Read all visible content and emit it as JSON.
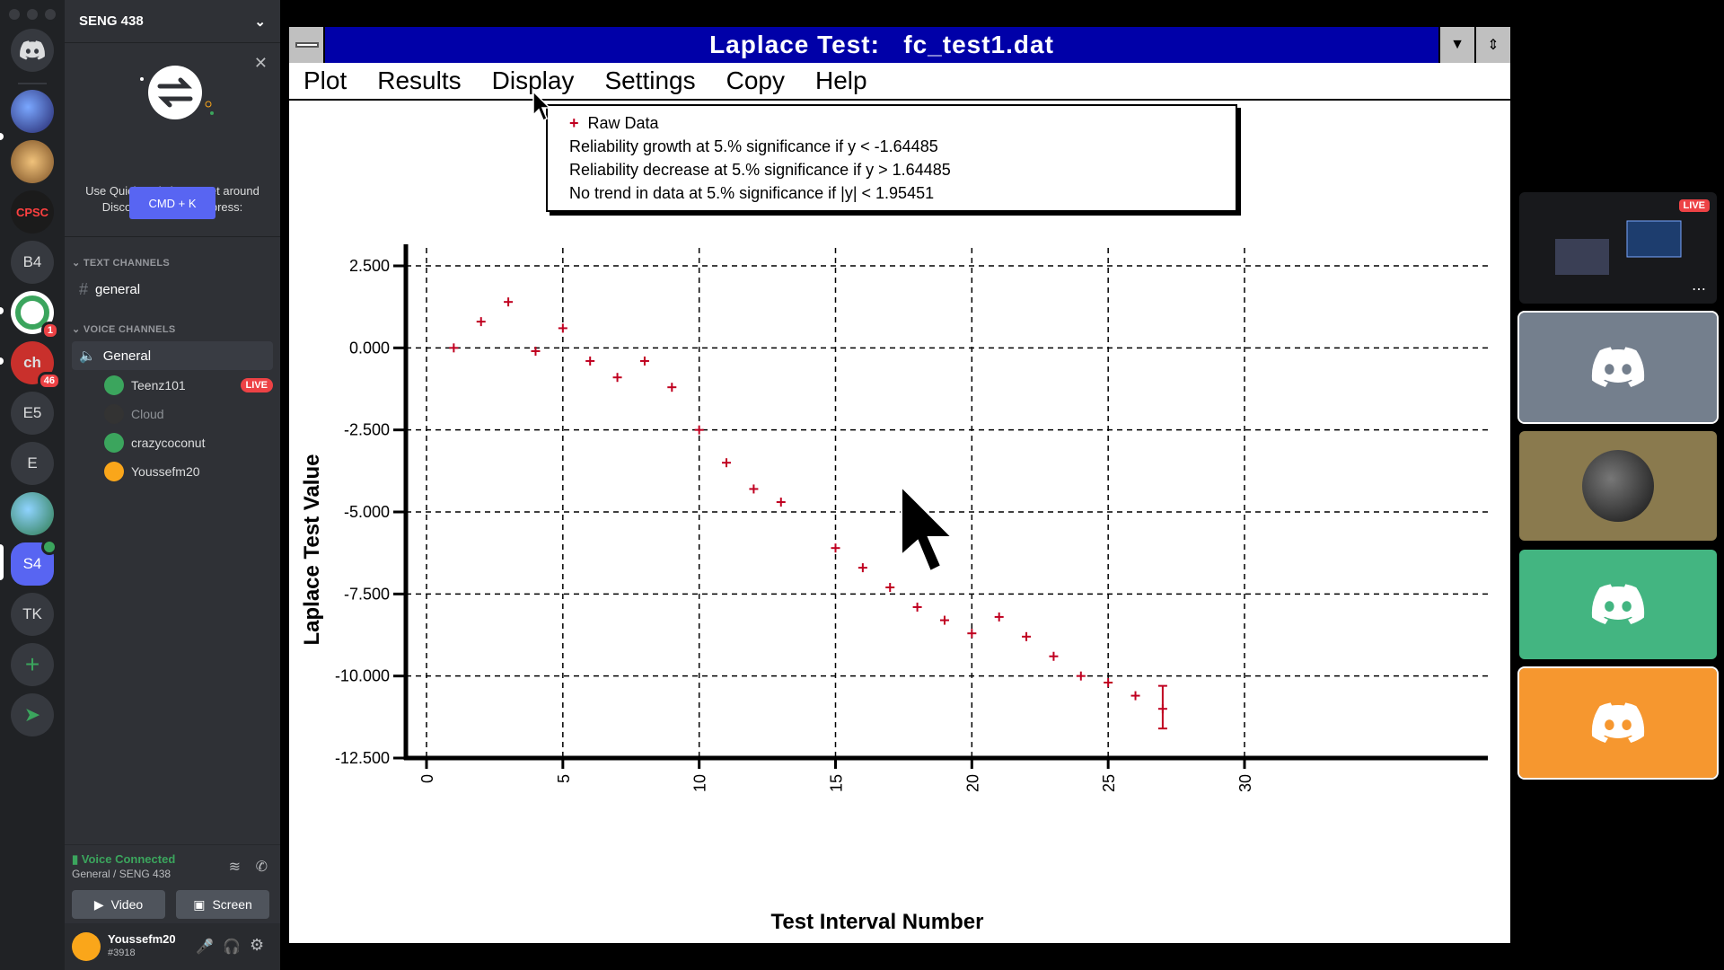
{
  "discord": {
    "server_rail": [
      {
        "name": "home",
        "label": ""
      },
      {
        "name": "server-1",
        "label": ""
      },
      {
        "name": "server-2",
        "label": ""
      },
      {
        "name": "cpsc-441",
        "label": "CPSC"
      },
      {
        "name": "b4",
        "label": "B4"
      },
      {
        "name": "server-ring",
        "label": "",
        "badge": "1"
      },
      {
        "name": "server-ch",
        "label": "ch",
        "badge": "46"
      },
      {
        "name": "e5",
        "label": "E5"
      },
      {
        "name": "e",
        "label": "E"
      },
      {
        "name": "server-globe",
        "label": ""
      },
      {
        "name": "s4",
        "label": "S4"
      },
      {
        "name": "tk",
        "label": "TK"
      }
    ],
    "server_name": "SENG 438",
    "quick_switcher": {
      "text": "Use Quick Switcher to get around Discord quickly. Just press:",
      "shortcut": "CMD + K"
    },
    "text_channels_label": "TEXT CHANNELS",
    "text_channels": [
      "general"
    ],
    "voice_channels_label": "VOICE CHANNELS",
    "voice_channel": "General",
    "voice_users": [
      {
        "name": "Teenz101",
        "live": "LIVE",
        "color": "#3ba55d"
      },
      {
        "name": "Cloud",
        "live": "",
        "color": "#333333"
      },
      {
        "name": "crazycoconut",
        "live": "",
        "color": "#3ba55d"
      },
      {
        "name": "Youssefm20",
        "live": "",
        "color": "#faa61a"
      }
    ],
    "voice_connected": "Voice Connected",
    "voice_location": "General / SENG 438",
    "video_label": "Video",
    "screen_label": "Screen",
    "user": {
      "name": "Youssefm20",
      "tag": "#3918"
    },
    "stream_live_badge": "LIVE",
    "tile_colors": [
      "#747f8d",
      "#8a7a4e",
      "#43b581",
      "#f6972f"
    ]
  },
  "app": {
    "title": "Laplace Test:   fc_test1.dat",
    "menu": [
      "Plot",
      "Results",
      "Display",
      "Settings",
      "Copy",
      "Help"
    ],
    "legend": {
      "raw_data": "Raw Data",
      "growth": "Reliability growth at 5.% significance if y < -1.64485",
      "decrease": "Reliability decrease at 5.% significance if y > 1.64485",
      "no_trend": "No trend in data at 5.% significance if |y| < 1.95451"
    }
  },
  "chart_data": {
    "type": "scatter",
    "xlabel": "Test Interval Number",
    "ylabel": "Laplace Test Value",
    "xlim": [
      0,
      30
    ],
    "ylim": [
      -12.5,
      2.5
    ],
    "xticks": [
      "0",
      "5",
      "10",
      "15",
      "20",
      "25",
      "30"
    ],
    "yticks": [
      "2.500",
      "0.000",
      "-2.500",
      "-5.000",
      "-7.500",
      "-10.000",
      "-12.500"
    ],
    "grid": true,
    "marker_color": "#c00020",
    "series": [
      {
        "name": "Raw Data",
        "x": [
          1,
          2,
          3,
          4,
          5,
          6,
          7,
          8,
          9,
          10,
          11,
          12,
          13,
          15,
          16,
          17,
          18,
          19,
          20,
          21,
          22,
          23,
          24,
          25,
          26,
          27
        ],
        "y": [
          0.0,
          0.8,
          1.4,
          -0.1,
          0.6,
          -0.4,
          -0.9,
          -0.4,
          -1.2,
          -2.5,
          -3.5,
          -4.3,
          -4.7,
          -6.1,
          -6.7,
          -7.3,
          -7.9,
          -8.3,
          -8.7,
          -8.2,
          -8.8,
          -9.4,
          -10.0,
          -10.2,
          -10.6,
          -11.0
        ]
      }
    ],
    "error_bar": {
      "x": 27,
      "y_low": -11.6,
      "y_high": -10.3
    }
  }
}
